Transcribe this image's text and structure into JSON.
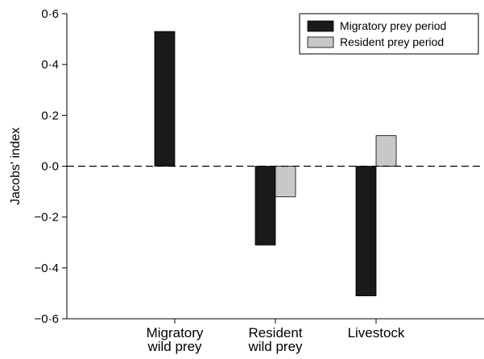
{
  "chart_data": {
    "type": "bar",
    "title": "",
    "xlabel": "",
    "ylabel": "Jacobs' index",
    "ylim": [
      -0.6,
      0.6
    ],
    "yticks": [
      {
        "value": 0.6,
        "label": "0·6"
      },
      {
        "value": 0.4,
        "label": "0·4"
      },
      {
        "value": 0.2,
        "label": "0·2"
      },
      {
        "value": 0.0,
        "label": "0·0"
      },
      {
        "value": -0.2,
        "label": "−0·2"
      },
      {
        "value": -0.4,
        "label": "−0·4"
      },
      {
        "value": -0.6,
        "label": "−0·6"
      }
    ],
    "categories": [
      [
        "Migratory",
        "wild prey"
      ],
      [
        "Resident",
        "wild prey"
      ],
      [
        "Livestock"
      ]
    ],
    "series": [
      {
        "name": "Migratory prey period",
        "color": "#1a1a1a",
        "values": [
          0.53,
          -0.31,
          -0.51
        ]
      },
      {
        "name": "Resident prey period",
        "color": "#c8c8c8",
        "values": [
          null,
          -0.12,
          0.12
        ]
      }
    ],
    "zero_line": "dashed",
    "grid": false,
    "legend_position": "top-right"
  }
}
